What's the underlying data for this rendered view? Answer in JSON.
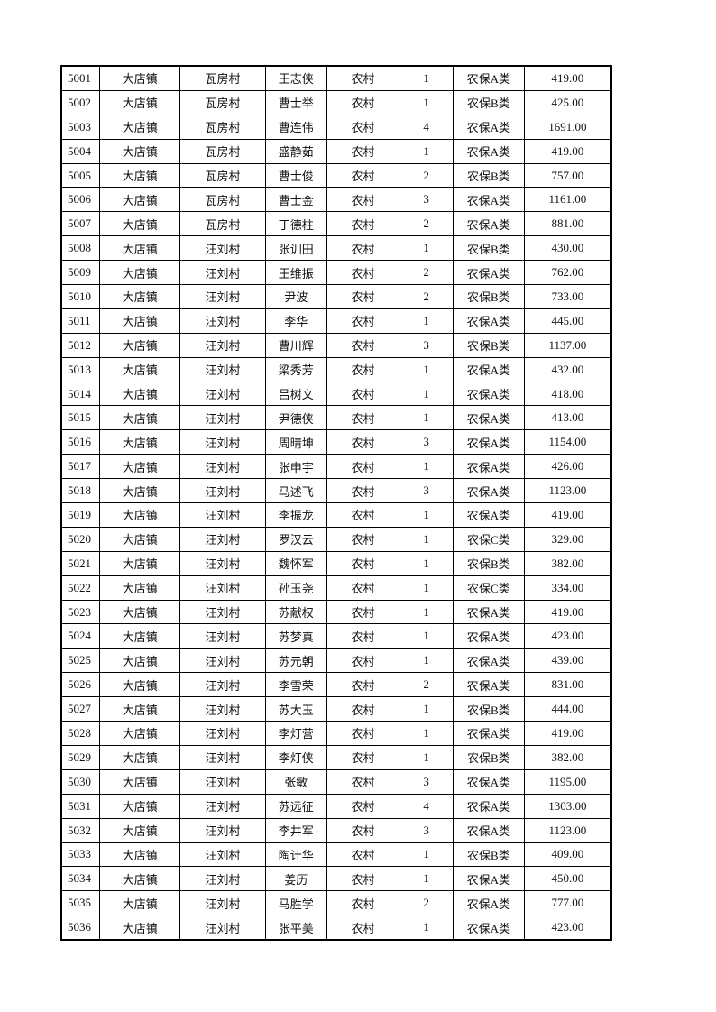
{
  "table": {
    "rows": [
      [
        "5001",
        "大店镇",
        "瓦房村",
        "王志侠",
        "农村",
        "1",
        "农保A类",
        "419.00"
      ],
      [
        "5002",
        "大店镇",
        "瓦房村",
        "曹士举",
        "农村",
        "1",
        "农保B类",
        "425.00"
      ],
      [
        "5003",
        "大店镇",
        "瓦房村",
        "曹连伟",
        "农村",
        "4",
        "农保A类",
        "1691.00"
      ],
      [
        "5004",
        "大店镇",
        "瓦房村",
        "盛静茹",
        "农村",
        "1",
        "农保A类",
        "419.00"
      ],
      [
        "5005",
        "大店镇",
        "瓦房村",
        "曹士俊",
        "农村",
        "2",
        "农保B类",
        "757.00"
      ],
      [
        "5006",
        "大店镇",
        "瓦房村",
        "曹士金",
        "农村",
        "3",
        "农保A类",
        "1161.00"
      ],
      [
        "5007",
        "大店镇",
        "瓦房村",
        "丁德柱",
        "农村",
        "2",
        "农保A类",
        "881.00"
      ],
      [
        "5008",
        "大店镇",
        "汪刘村",
        "张训田",
        "农村",
        "1",
        "农保B类",
        "430.00"
      ],
      [
        "5009",
        "大店镇",
        "汪刘村",
        "王维振",
        "农村",
        "2",
        "农保A类",
        "762.00"
      ],
      [
        "5010",
        "大店镇",
        "汪刘村",
        "尹波",
        "农村",
        "2",
        "农保B类",
        "733.00"
      ],
      [
        "5011",
        "大店镇",
        "汪刘村",
        "李华",
        "农村",
        "1",
        "农保A类",
        "445.00"
      ],
      [
        "5012",
        "大店镇",
        "汪刘村",
        "曹川辉",
        "农村",
        "3",
        "农保B类",
        "1137.00"
      ],
      [
        "5013",
        "大店镇",
        "汪刘村",
        "梁秀芳",
        "农村",
        "1",
        "农保A类",
        "432.00"
      ],
      [
        "5014",
        "大店镇",
        "汪刘村",
        "吕树文",
        "农村",
        "1",
        "农保A类",
        "418.00"
      ],
      [
        "5015",
        "大店镇",
        "汪刘村",
        "尹德侠",
        "农村",
        "1",
        "农保A类",
        "413.00"
      ],
      [
        "5016",
        "大店镇",
        "汪刘村",
        "周晴坤",
        "农村",
        "3",
        "农保A类",
        "1154.00"
      ],
      [
        "5017",
        "大店镇",
        "汪刘村",
        "张申宇",
        "农村",
        "1",
        "农保A类",
        "426.00"
      ],
      [
        "5018",
        "大店镇",
        "汪刘村",
        "马述飞",
        "农村",
        "3",
        "农保A类",
        "1123.00"
      ],
      [
        "5019",
        "大店镇",
        "汪刘村",
        "李振龙",
        "农村",
        "1",
        "农保A类",
        "419.00"
      ],
      [
        "5020",
        "大店镇",
        "汪刘村",
        "罗汉云",
        "农村",
        "1",
        "农保C类",
        "329.00"
      ],
      [
        "5021",
        "大店镇",
        "汪刘村",
        "魏怀军",
        "农村",
        "1",
        "农保B类",
        "382.00"
      ],
      [
        "5022",
        "大店镇",
        "汪刘村",
        "孙玉尧",
        "农村",
        "1",
        "农保C类",
        "334.00"
      ],
      [
        "5023",
        "大店镇",
        "汪刘村",
        "苏献权",
        "农村",
        "1",
        "农保A类",
        "419.00"
      ],
      [
        "5024",
        "大店镇",
        "汪刘村",
        "苏梦真",
        "农村",
        "1",
        "农保A类",
        "423.00"
      ],
      [
        "5025",
        "大店镇",
        "汪刘村",
        "苏元朝",
        "农村",
        "1",
        "农保A类",
        "439.00"
      ],
      [
        "5026",
        "大店镇",
        "汪刘村",
        "李雪荣",
        "农村",
        "2",
        "农保A类",
        "831.00"
      ],
      [
        "5027",
        "大店镇",
        "汪刘村",
        "苏大玉",
        "农村",
        "1",
        "农保B类",
        "444.00"
      ],
      [
        "5028",
        "大店镇",
        "汪刘村",
        "李灯营",
        "农村",
        "1",
        "农保A类",
        "419.00"
      ],
      [
        "5029",
        "大店镇",
        "汪刘村",
        "李灯侠",
        "农村",
        "1",
        "农保B类",
        "382.00"
      ],
      [
        "5030",
        "大店镇",
        "汪刘村",
        "张敏",
        "农村",
        "3",
        "农保A类",
        "1195.00"
      ],
      [
        "5031",
        "大店镇",
        "汪刘村",
        "苏远征",
        "农村",
        "4",
        "农保A类",
        "1303.00"
      ],
      [
        "5032",
        "大店镇",
        "汪刘村",
        "李井军",
        "农村",
        "3",
        "农保A类",
        "1123.00"
      ],
      [
        "5033",
        "大店镇",
        "汪刘村",
        "陶计华",
        "农村",
        "1",
        "农保B类",
        "409.00"
      ],
      [
        "5034",
        "大店镇",
        "汪刘村",
        "姜历",
        "农村",
        "1",
        "农保A类",
        "450.00"
      ],
      [
        "5035",
        "大店镇",
        "汪刘村",
        "马胜学",
        "农村",
        "2",
        "农保A类",
        "777.00"
      ],
      [
        "5036",
        "大店镇",
        "汪刘村",
        "张平美",
        "农村",
        "1",
        "农保A类",
        "423.00"
      ]
    ]
  }
}
